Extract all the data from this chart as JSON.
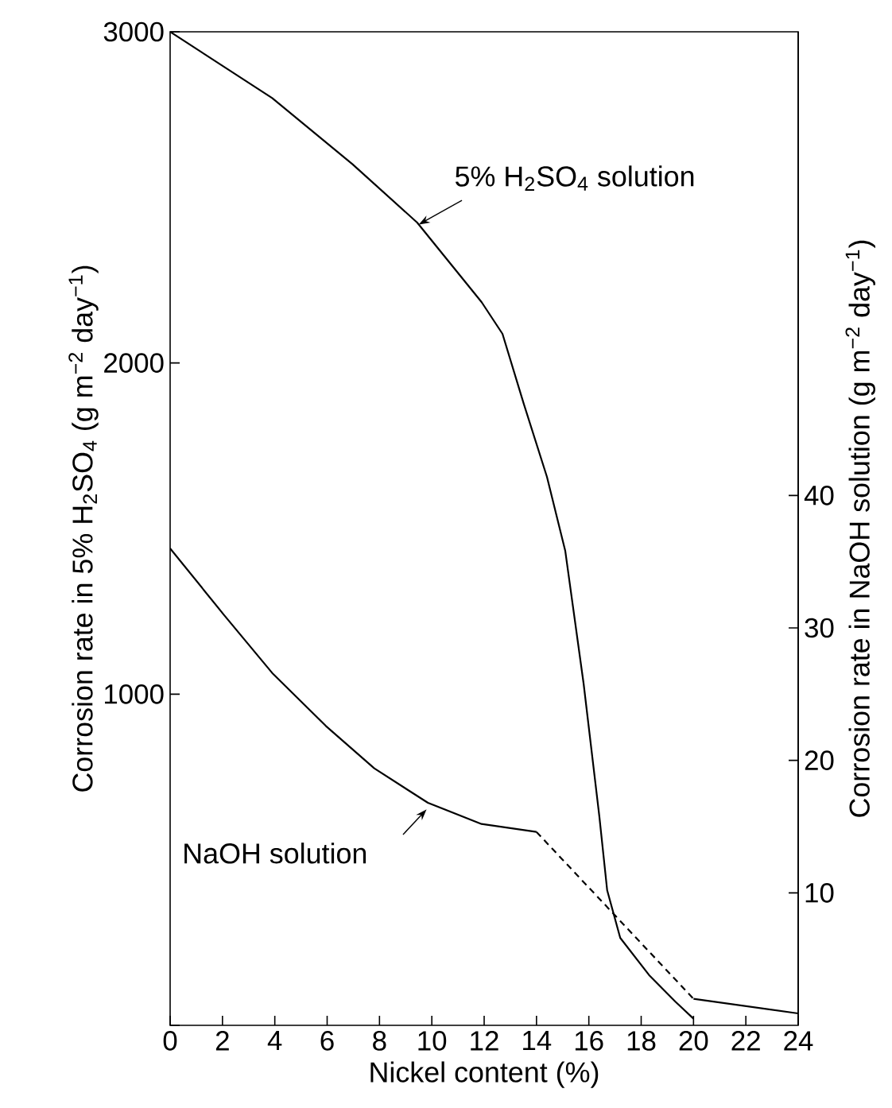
{
  "chart_data": {
    "type": "line",
    "xlabel": "Nickel content (%)",
    "ylabel": "Corrosion rate in 5% H$_{2}$SO$_{4}$ (g m$^{−2}$ day$^{−1}$)",
    "y2label": "Corrosion rate in NaOH solution (g m$^{−2}$ day$^{−1}$)",
    "xlim": [
      0,
      24
    ],
    "xticks": [
      0,
      2,
      4,
      6,
      8,
      10,
      12,
      14,
      16,
      18,
      20,
      22,
      24
    ],
    "ylim": [
      0,
      3000
    ],
    "yticks": [
      {
        "value": 0,
        "label": null
      },
      1000,
      2000,
      3000
    ],
    "y2lim": [
      0,
      75
    ],
    "y2ticks": [
      10,
      20,
      30,
      40
    ],
    "series": [
      {
        "name": "5% H$_{2}$SO$_{4}$ solution",
        "color": "#000000",
        "x": [
          0,
          3.9,
          6.97,
          9.44,
          11.9,
          12.7,
          13.5,
          14.4,
          15.1,
          15.8,
          16.4,
          16.7,
          17.2,
          18.3,
          19.3,
          20
        ],
        "values": [
          3000,
          2800,
          2600,
          2424,
          2184,
          2088,
          1880,
          1656,
          1432,
          1032,
          632,
          408,
          264,
          152,
          72,
          20
        ]
      },
      {
        "name": "NaOH solution",
        "color": "#000000",
        "axis": "y2",
        "x": [
          0,
          2.05,
          3.9,
          5.95,
          7.8,
          9.85,
          11.9,
          14
        ],
        "values": [
          36.0,
          31.0,
          26.6,
          22.6,
          19.4,
          16.8,
          15.2,
          14.6
        ]
      },
      {
        "color": "#000000",
        "axis": "y2",
        "line_style": "dashed",
        "x": [
          14,
          20
        ],
        "values": [
          14.6,
          2.0
        ]
      },
      {
        "color": "#000000",
        "axis": "y2",
        "x": [
          20,
          24
        ],
        "values": [
          2.0,
          0.9
        ]
      }
    ]
  }
}
